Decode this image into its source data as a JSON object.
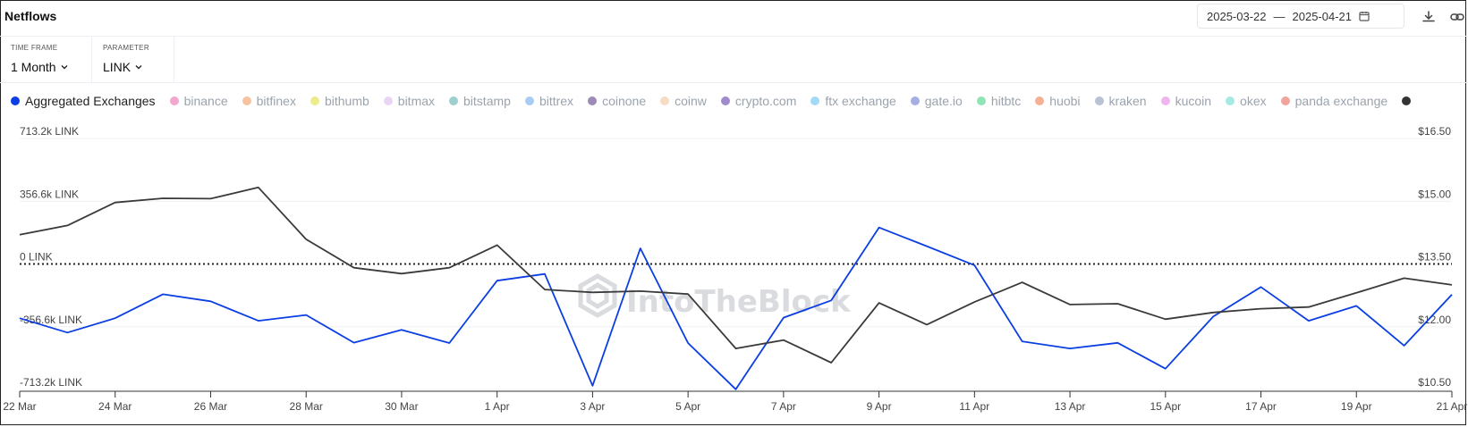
{
  "header": {
    "title": "Netflows",
    "date_start": "2025-03-22",
    "date_sep": "—",
    "date_end": "2025-04-21"
  },
  "params": {
    "time_frame_label": "TIME FRAME",
    "time_frame_value": "1 Month",
    "parameter_label": "PARAMETER",
    "parameter_value": "LINK"
  },
  "legend": [
    {
      "label": "Aggregated Exchanges",
      "color": "#0b3ee3",
      "active": true
    },
    {
      "label": "binance",
      "color": "#f3a7cf",
      "active": false
    },
    {
      "label": "bitfinex",
      "color": "#f6c2a0",
      "active": false
    },
    {
      "label": "bithumb",
      "color": "#ecec8c",
      "active": false
    },
    {
      "label": "bitmax",
      "color": "#ebd5f5",
      "active": false
    },
    {
      "label": "bitstamp",
      "color": "#9ecfcf",
      "active": false
    },
    {
      "label": "bittrex",
      "color": "#a8cdf3",
      "active": false
    },
    {
      "label": "coinone",
      "color": "#9d8ab8",
      "active": false
    },
    {
      "label": "coinw",
      "color": "#f6dcc2",
      "active": false
    },
    {
      "label": "crypto.com",
      "color": "#a08bcc",
      "active": false
    },
    {
      "label": "ftx exchange",
      "color": "#a3d8f6",
      "active": false
    },
    {
      "label": "gate.io",
      "color": "#a7aee3",
      "active": false
    },
    {
      "label": "hitbtc",
      "color": "#8fe3b4",
      "active": false
    },
    {
      "label": "huobi",
      "color": "#f5b193",
      "active": false
    },
    {
      "label": "kraken",
      "color": "#b7c2d4",
      "active": false
    },
    {
      "label": "kucoin",
      "color": "#efb6ee",
      "active": false
    },
    {
      "label": "okex",
      "color": "#a6ebe2",
      "active": false
    },
    {
      "label": "panda exchange",
      "color": "#f1a49a",
      "active": false
    },
    {
      "label": "",
      "color": "#333333",
      "active": true
    }
  ],
  "watermark": "IntoTheBlock",
  "chart_data": {
    "type": "line",
    "x": [
      "2025-03-22",
      "2025-03-23",
      "2025-03-24",
      "2025-03-25",
      "2025-03-26",
      "2025-03-27",
      "2025-03-28",
      "2025-03-29",
      "2025-03-30",
      "2025-03-31",
      "2025-04-01",
      "2025-04-02",
      "2025-04-03",
      "2025-04-04",
      "2025-04-05",
      "2025-04-06",
      "2025-04-07",
      "2025-04-08",
      "2025-04-09",
      "2025-04-10",
      "2025-04-11",
      "2025-04-12",
      "2025-04-13",
      "2025-04-14",
      "2025-04-15",
      "2025-04-16",
      "2025-04-17",
      "2025-04-18",
      "2025-04-19",
      "2025-04-20",
      "2025-04-21"
    ],
    "x_tick_labels": [
      "22 Mar",
      "24 Mar",
      "26 Mar",
      "28 Mar",
      "30 Mar",
      "1 Apr",
      "3 Apr",
      "5 Apr",
      "7 Apr",
      "9 Apr",
      "11 Apr",
      "13 Apr",
      "15 Apr",
      "17 Apr",
      "19 Apr",
      "21 Apr"
    ],
    "y_left": {
      "ticks": [
        "713.2k LINK",
        "356.6k LINK",
        "0 LINK",
        "-356.6k LINK",
        "-713.2k LINK"
      ],
      "tick_values": [
        713200,
        356600,
        0,
        -356600,
        -713200
      ],
      "range": [
        -713200,
        713200
      ]
    },
    "y_right": {
      "ticks": [
        "$16.50",
        "$15.00",
        "$13.50",
        "$12.00",
        "$10.50"
      ],
      "tick_values": [
        16.5,
        15.0,
        13.5,
        12.0,
        10.5
      ],
      "range": [
        10.5,
        16.5
      ]
    },
    "zero_line": "dotted",
    "grid": true,
    "series": [
      {
        "name": "Aggregated Exchanges",
        "axis": "left",
        "color": "#0b3ee3",
        "values": [
          -308000,
          -390000,
          -308000,
          -172000,
          -212000,
          -323000,
          -290000,
          -447000,
          -374000,
          -449000,
          -95000,
          -57000,
          -692000,
          89000,
          -449000,
          -712000,
          -305000,
          -207000,
          207000,
          101000,
          -7000,
          -440000,
          -480000,
          -448000,
          -595000,
          -299000,
          -131000,
          -323000,
          -238000,
          -464000,
          -174000
        ]
      },
      {
        "name": "",
        "axis": "right",
        "color": "#3a3a3a",
        "values": [
          14.2,
          14.42,
          14.97,
          15.07,
          15.06,
          15.33,
          14.09,
          13.41,
          13.27,
          13.41,
          13.95,
          12.89,
          12.82,
          12.85,
          12.78,
          11.48,
          11.68,
          11.14,
          12.57,
          12.05,
          12.59,
          13.06,
          12.53,
          12.55,
          12.18,
          12.34,
          12.43,
          12.47,
          12.81,
          13.16,
          13.0
        ]
      }
    ]
  }
}
